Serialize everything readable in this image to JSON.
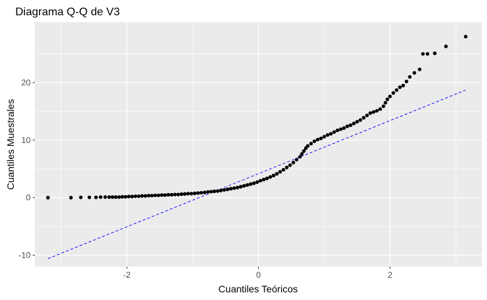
{
  "chart_data": {
    "type": "scatter",
    "title": "Diagrama Q-Q de V3",
    "xlabel": "Cuantiles Teóricos",
    "ylabel": "Cuantiles Muestrales",
    "xlim": [
      -3.4,
      3.4
    ],
    "ylim": [
      -12,
      30.5
    ],
    "x_ticks": [
      -2,
      0,
      2
    ],
    "x_tick_labels": [
      "-2",
      "0",
      "2"
    ],
    "y_ticks": [
      -10,
      0,
      10,
      20
    ],
    "y_tick_labels": [
      "-10",
      "0",
      "10",
      "20"
    ],
    "grid": true,
    "panel_background": "#ebebeb",
    "point_color": "#000000",
    "reference_line": {
      "color": "#0000ff",
      "style": "dashed",
      "x": [
        -3.2,
        3.15
      ],
      "y": [
        -10.6,
        18.7
      ]
    },
    "points": [
      [
        -3.2,
        0.0
      ],
      [
        -2.85,
        0.0
      ],
      [
        -2.7,
        0.05
      ],
      [
        -2.57,
        0.05
      ],
      [
        -2.47,
        0.05
      ],
      [
        -2.4,
        0.1
      ],
      [
        -2.33,
        0.1
      ],
      [
        -2.27,
        0.1
      ],
      [
        -2.22,
        0.1
      ],
      [
        -2.17,
        0.1
      ],
      [
        -2.12,
        0.1
      ],
      [
        -2.07,
        0.15
      ],
      [
        -2.02,
        0.15
      ],
      [
        -1.97,
        0.2
      ],
      [
        -1.92,
        0.2
      ],
      [
        -1.87,
        0.25
      ],
      [
        -1.82,
        0.25
      ],
      [
        -1.77,
        0.3
      ],
      [
        -1.72,
        0.3
      ],
      [
        -1.67,
        0.35
      ],
      [
        -1.62,
        0.35
      ],
      [
        -1.57,
        0.4
      ],
      [
        -1.52,
        0.4
      ],
      [
        -1.47,
        0.45
      ],
      [
        -1.42,
        0.45
      ],
      [
        -1.37,
        0.5
      ],
      [
        -1.32,
        0.5
      ],
      [
        -1.27,
        0.55
      ],
      [
        -1.22,
        0.55
      ],
      [
        -1.17,
        0.6
      ],
      [
        -1.12,
        0.65
      ],
      [
        -1.07,
        0.7
      ],
      [
        -1.02,
        0.7
      ],
      [
        -0.97,
        0.75
      ],
      [
        -0.92,
        0.8
      ],
      [
        -0.87,
        0.85
      ],
      [
        -0.82,
        0.9
      ],
      [
        -0.77,
        1.0
      ],
      [
        -0.72,
        1.05
      ],
      [
        -0.67,
        1.1
      ],
      [
        -0.62,
        1.15
      ],
      [
        -0.57,
        1.25
      ],
      [
        -0.52,
        1.35
      ],
      [
        -0.47,
        1.45
      ],
      [
        -0.42,
        1.55
      ],
      [
        -0.37,
        1.65
      ],
      [
        -0.32,
        1.75
      ],
      [
        -0.27,
        1.9
      ],
      [
        -0.22,
        2.05
      ],
      [
        -0.17,
        2.2
      ],
      [
        -0.12,
        2.35
      ],
      [
        -0.07,
        2.5
      ],
      [
        -0.02,
        2.7
      ],
      [
        0.03,
        2.95
      ],
      [
        0.08,
        3.15
      ],
      [
        0.13,
        3.35
      ],
      [
        0.18,
        3.6
      ],
      [
        0.23,
        3.85
      ],
      [
        0.28,
        4.15
      ],
      [
        0.33,
        4.5
      ],
      [
        0.38,
        4.85
      ],
      [
        0.43,
        5.25
      ],
      [
        0.48,
        5.65
      ],
      [
        0.53,
        6.1
      ],
      [
        0.58,
        6.6
      ],
      [
        0.63,
        7.1
      ],
      [
        0.66,
        7.6
      ],
      [
        0.69,
        8.1
      ],
      [
        0.72,
        8.6
      ],
      [
        0.75,
        9.0
      ],
      [
        0.8,
        9.4
      ],
      [
        0.85,
        9.8
      ],
      [
        0.9,
        10.1
      ],
      [
        0.95,
        10.3
      ],
      [
        1.0,
        10.6
      ],
      [
        1.05,
        10.9
      ],
      [
        1.1,
        11.1
      ],
      [
        1.15,
        11.4
      ],
      [
        1.2,
        11.7
      ],
      [
        1.25,
        11.9
      ],
      [
        1.3,
        12.1
      ],
      [
        1.35,
        12.4
      ],
      [
        1.4,
        12.6
      ],
      [
        1.45,
        12.9
      ],
      [
        1.5,
        13.2
      ],
      [
        1.55,
        13.5
      ],
      [
        1.6,
        13.9
      ],
      [
        1.65,
        14.3
      ],
      [
        1.7,
        14.7
      ],
      [
        1.75,
        14.9
      ],
      [
        1.8,
        15.1
      ],
      [
        1.85,
        15.4
      ],
      [
        1.9,
        15.9
      ],
      [
        1.93,
        16.5
      ],
      [
        1.96,
        17.1
      ],
      [
        2.0,
        17.6
      ],
      [
        2.05,
        18.2
      ],
      [
        2.1,
        18.7
      ],
      [
        2.15,
        19.2
      ],
      [
        2.2,
        19.5
      ],
      [
        2.25,
        20.2
      ],
      [
        2.3,
        21.0
      ],
      [
        2.37,
        21.7
      ],
      [
        2.45,
        22.3
      ],
      [
        2.5,
        25.0
      ],
      [
        2.57,
        25.0
      ],
      [
        2.68,
        25.1
      ],
      [
        2.85,
        26.3
      ],
      [
        3.15,
        28.0
      ]
    ]
  }
}
